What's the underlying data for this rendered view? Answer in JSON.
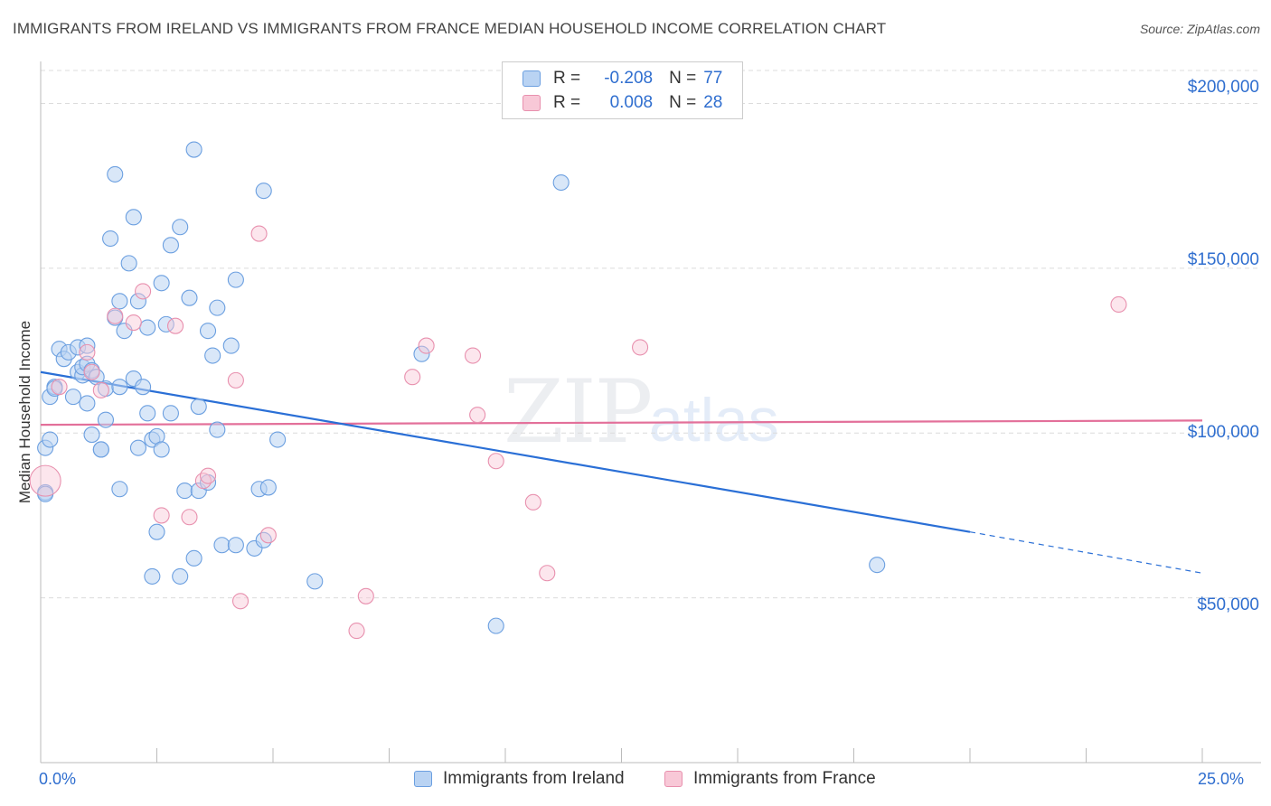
{
  "header": {
    "title": "IMMIGRANTS FROM IRELAND VS IMMIGRANTS FROM FRANCE MEDIAN HOUSEHOLD INCOME CORRELATION CHART",
    "source": "Source: ZipAtlas.com"
  },
  "watermark": {
    "zip": "ZIP",
    "atlas": "atlas"
  },
  "legend": {
    "rows": [
      {
        "r_label": "R =",
        "r_value": "-0.208",
        "n_label": "N =",
        "n_value": "77"
      },
      {
        "r_label": "R =",
        "r_value": "0.008",
        "n_label": "N =",
        "n_value": "28"
      }
    ]
  },
  "colors": {
    "ireland": "#6b9fe0",
    "ireland_fill": "#b9d3f3",
    "france": "#e890ae",
    "france_fill": "#f8c8d7",
    "ireland_line": "#2a6fd6",
    "france_line": "#e3709a",
    "tick_text": "#2f6ecf"
  },
  "chart_data": {
    "type": "scatter",
    "title": "IMMIGRANTS FROM IRELAND VS IMMIGRANTS FROM FRANCE MEDIAN HOUSEHOLD INCOME CORRELATION CHART",
    "xlabel": "",
    "ylabel": "Median Household Income",
    "xlim": [
      0,
      25
    ],
    "ylim": [
      0,
      210000
    ],
    "x_tick_labels": [
      "0.0%",
      "25.0%"
    ],
    "y_ticks": [
      50000,
      100000,
      150000,
      200000
    ],
    "y_tick_labels": [
      "$50,000",
      "$100,000",
      "$150,000",
      "$200,000"
    ],
    "grid": true,
    "legend_position": "top-center",
    "series": [
      {
        "name": "Immigrants from Ireland",
        "trend": {
          "x": [
            0,
            20
          ],
          "y": [
            118500,
            70000
          ],
          "dashed_to": [
            25,
            57500
          ]
        },
        "points": [
          [
            0.1,
            82000
          ],
          [
            0.1,
            95500
          ],
          [
            0.2,
            98000
          ],
          [
            0.2,
            111000
          ],
          [
            0.3,
            114000
          ],
          [
            0.4,
            125500
          ],
          [
            0.5,
            122500
          ],
          [
            0.6,
            124500
          ],
          [
            0.7,
            111000
          ],
          [
            0.8,
            118500
          ],
          [
            0.8,
            126000
          ],
          [
            0.9,
            117500
          ],
          [
            0.9,
            120000
          ],
          [
            1.0,
            126500
          ],
          [
            1.0,
            121000
          ],
          [
            1.0,
            109000
          ],
          [
            1.1,
            99500
          ],
          [
            1.1,
            119000
          ],
          [
            1.2,
            117000
          ],
          [
            1.3,
            95000
          ],
          [
            1.3,
            95000
          ],
          [
            1.4,
            113500
          ],
          [
            1.4,
            104000
          ],
          [
            1.5,
            159000
          ],
          [
            1.6,
            135000
          ],
          [
            1.6,
            178500
          ],
          [
            1.7,
            114000
          ],
          [
            1.7,
            83000
          ],
          [
            1.7,
            140000
          ],
          [
            1.8,
            131000
          ],
          [
            1.9,
            151500
          ],
          [
            2.0,
            165500
          ],
          [
            2.0,
            116500
          ],
          [
            2.1,
            95500
          ],
          [
            2.1,
            140000
          ],
          [
            2.2,
            114000
          ],
          [
            2.3,
            106000
          ],
          [
            2.3,
            132000
          ],
          [
            2.4,
            56500
          ],
          [
            2.4,
            98000
          ],
          [
            2.5,
            99000
          ],
          [
            2.5,
            70000
          ],
          [
            2.6,
            95000
          ],
          [
            2.6,
            145500
          ],
          [
            2.7,
            133000
          ],
          [
            2.8,
            106000
          ],
          [
            2.8,
            157000
          ],
          [
            3.0,
            56500
          ],
          [
            3.0,
            162500
          ],
          [
            3.1,
            82500
          ],
          [
            3.2,
            141000
          ],
          [
            3.3,
            186000
          ],
          [
            3.3,
            62000
          ],
          [
            3.4,
            108000
          ],
          [
            3.4,
            82500
          ],
          [
            3.6,
            131000
          ],
          [
            3.6,
            85000
          ],
          [
            3.7,
            123500
          ],
          [
            3.8,
            138000
          ],
          [
            3.8,
            101000
          ],
          [
            3.9,
            66000
          ],
          [
            4.1,
            126500
          ],
          [
            4.2,
            146500
          ],
          [
            4.2,
            66000
          ],
          [
            4.6,
            65000
          ],
          [
            4.7,
            83000
          ],
          [
            4.8,
            67500
          ],
          [
            4.8,
            173500
          ],
          [
            4.9,
            83500
          ],
          [
            5.1,
            98000
          ],
          [
            5.9,
            55000
          ],
          [
            8.2,
            124000
          ],
          [
            9.8,
            41500
          ],
          [
            11.2,
            176000
          ],
          [
            18.0,
            60000
          ],
          [
            0.1,
            81500
          ],
          [
            0.3,
            113500
          ]
        ]
      },
      {
        "name": "Immigrants from France",
        "trend": {
          "x": [
            0,
            25
          ],
          "y": [
            102500,
            103800
          ]
        },
        "points": [
          [
            0.1,
            85500
          ],
          [
            0.4,
            114000
          ],
          [
            1.0,
            124500
          ],
          [
            1.1,
            118500
          ],
          [
            1.3,
            113000
          ],
          [
            1.6,
            135500
          ],
          [
            2.0,
            133500
          ],
          [
            2.2,
            143000
          ],
          [
            2.6,
            75000
          ],
          [
            2.9,
            132500
          ],
          [
            3.2,
            74500
          ],
          [
            3.5,
            85500
          ],
          [
            3.6,
            87000
          ],
          [
            4.2,
            116000
          ],
          [
            4.3,
            49000
          ],
          [
            4.7,
            160500
          ],
          [
            4.9,
            69000
          ],
          [
            6.8,
            40000
          ],
          [
            7.0,
            50500
          ],
          [
            8.0,
            117000
          ],
          [
            8.3,
            126500
          ],
          [
            9.3,
            123500
          ],
          [
            9.4,
            105500
          ],
          [
            9.8,
            91500
          ],
          [
            10.6,
            79000
          ],
          [
            10.9,
            57500
          ],
          [
            12.9,
            126000
          ],
          [
            23.2,
            139000
          ]
        ]
      }
    ]
  }
}
